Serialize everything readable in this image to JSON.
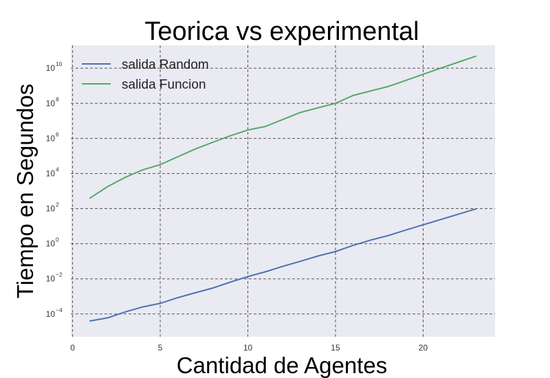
{
  "chart_data": {
    "type": "line",
    "title": "Teorica vs experimental",
    "xlabel": "Cantidad de Agentes",
    "ylabel": "Tiempo en Segundos",
    "yscale": "log",
    "xlim": [
      -0.1,
      24.1
    ],
    "ylim_log10": [
      -5.3,
      11.3
    ],
    "grid": true,
    "legend_position": "upper-left",
    "x_ticks": [
      0,
      5,
      10,
      15,
      20
    ],
    "y_ticks": [
      {
        "base": "10",
        "exp": "−4",
        "value": -4
      },
      {
        "base": "10",
        "exp": "−2",
        "value": -2
      },
      {
        "base": "10",
        "exp": "0",
        "value": 0
      },
      {
        "base": "10",
        "exp": "2",
        "value": 2
      },
      {
        "base": "10",
        "exp": "4",
        "value": 4
      },
      {
        "base": "10",
        "exp": "6",
        "value": 6
      },
      {
        "base": "10",
        "exp": "8",
        "value": 8
      },
      {
        "base": "10",
        "exp": "10",
        "value": 10
      }
    ],
    "x": [
      1,
      2,
      3,
      4,
      5,
      6,
      7,
      8,
      9,
      10,
      11,
      12,
      13,
      14,
      15,
      16,
      17,
      18,
      19,
      20,
      21,
      22,
      23
    ],
    "series": [
      {
        "name": "salida Random",
        "color": "#4c72b0",
        "values": [
          4e-05,
          6e-05,
          0.00013,
          0.00025,
          0.0004,
          0.00085,
          0.0016,
          0.003,
          0.0065,
          0.0135,
          0.025,
          0.052,
          0.1,
          0.2,
          0.36,
          0.8,
          1.6,
          2.9,
          6,
          12,
          24,
          48,
          95
        ]
      },
      {
        "name": "salida Funcion",
        "color": "#55a868",
        "values": [
          400,
          1800,
          6000,
          16000,
          32000,
          90000,
          250000,
          600000,
          1400000,
          3000000,
          4800000,
          12000000,
          30000000,
          55000000,
          100000000,
          280000000,
          500000000,
          900000000,
          2000000000,
          4500000000,
          10000000000,
          22000000000,
          48000000000
        ]
      }
    ]
  }
}
